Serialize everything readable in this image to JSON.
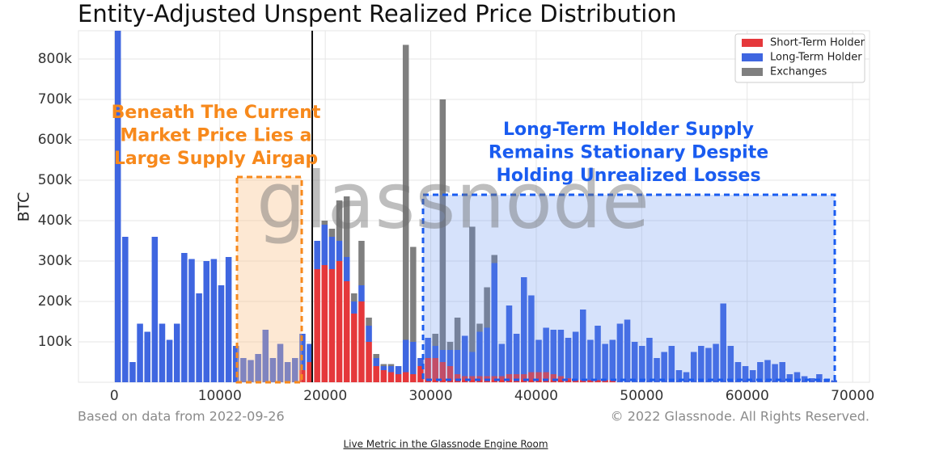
{
  "chart_data": {
    "type": "histogram",
    "title": "Entity-Adjusted Unspent Realized Price Distribution",
    "ylabel": "BTC",
    "bins": [
      0,
      700,
      1400,
      2100,
      2800,
      3500,
      4200,
      4900,
      5600,
      6300,
      7000,
      7700,
      8400,
      9100,
      9800,
      10500,
      11200,
      11900,
      12600,
      13300,
      14000,
      14700,
      15400,
      16100,
      16800,
      17500,
      18200,
      18900,
      19600,
      20300,
      21000,
      21700,
      22400,
      23100,
      23800,
      24500,
      25200,
      25900,
      26600,
      27300,
      28000,
      28700,
      29400,
      30100,
      30800,
      31500,
      32200,
      32900,
      33600,
      34300,
      35000,
      35700,
      36400,
      37100,
      37800,
      38500,
      39200,
      39900,
      40600,
      41300,
      42000,
      42700,
      43400,
      44100,
      44800,
      45500,
      46200,
      46900,
      47600,
      48300,
      49000,
      49700,
      50400,
      51100,
      51800,
      52500,
      53200,
      53900,
      54600,
      55300,
      56000,
      56700,
      57400,
      58100,
      58800,
      59500,
      60200,
      60900,
      61600,
      62300,
      63000,
      63700,
      64400,
      65100,
      65800,
      66500,
      67200,
      67900,
      68600
    ],
    "series": [
      {
        "name": "Short-Term Holder",
        "color": "#e5383b",
        "values": [
          0,
          0,
          0,
          0,
          0,
          0,
          0,
          0,
          0,
          0,
          0,
          0,
          0,
          0,
          0,
          0,
          0,
          0,
          0,
          0,
          0,
          0,
          0,
          0,
          0,
          30000,
          50000,
          280000,
          290000,
          280000,
          300000,
          250000,
          170000,
          200000,
          100000,
          40000,
          30000,
          25000,
          20000,
          25000,
          20000,
          40000,
          60000,
          60000,
          50000,
          40000,
          20000,
          15000,
          15000,
          15000,
          15000,
          15000,
          15000,
          20000,
          20000,
          20000,
          25000,
          25000,
          25000,
          20000,
          15000,
          10000,
          5000,
          5000,
          5000,
          5000,
          5000,
          5000,
          0,
          0,
          0,
          0,
          0,
          0,
          0,
          0,
          0,
          0,
          0,
          0,
          0,
          0,
          0,
          0,
          0,
          0,
          0,
          0,
          0,
          0,
          0,
          0,
          0,
          0,
          0,
          0,
          0,
          0
        ]
      },
      {
        "name": "Long-Term Holder",
        "color": "#3f66e0",
        "values": [
          870000,
          360000,
          50000,
          145000,
          125000,
          360000,
          145000,
          105000,
          145000,
          320000,
          305000,
          220000,
          300000,
          305000,
          240000,
          310000,
          90000,
          60000,
          55000,
          70000,
          130000,
          60000,
          95000,
          50000,
          60000,
          90000,
          45000,
          70000,
          100000,
          80000,
          50000,
          60000,
          30000,
          40000,
          40000,
          20000,
          10000,
          15000,
          20000,
          80000,
          80000,
          20000,
          50000,
          30000,
          30000,
          40000,
          60000,
          100000,
          60000,
          110000,
          120000,
          280000,
          80000,
          170000,
          100000,
          240000,
          190000,
          80000,
          110000,
          110000,
          115000,
          100000,
          120000,
          175000,
          100000,
          135000,
          90000,
          100000,
          145000,
          155000,
          100000,
          90000,
          110000,
          60000,
          75000,
          90000,
          30000,
          25000,
          75000,
          90000,
          85000,
          95000,
          195000,
          90000,
          50000,
          40000,
          30000,
          50000,
          55000,
          45000,
          50000,
          20000,
          25000,
          15000,
          10000,
          20000,
          8000,
          5000
        ]
      },
      {
        "name": "Exchanges",
        "color": "#7f7f7f",
        "values": [
          0,
          0,
          0,
          0,
          0,
          0,
          0,
          0,
          0,
          0,
          0,
          0,
          0,
          0,
          0,
          0,
          0,
          0,
          0,
          0,
          0,
          0,
          0,
          0,
          0,
          0,
          0,
          0,
          10000,
          20000,
          100000,
          150000,
          20000,
          110000,
          20000,
          10000,
          5000,
          5000,
          0,
          730000,
          235000,
          0,
          0,
          30000,
          620000,
          20000,
          80000,
          0,
          310000,
          20000,
          100000,
          20000,
          0,
          0,
          0,
          0,
          0,
          0,
          0,
          0,
          0,
          0,
          0,
          0,
          0,
          0,
          0,
          0,
          0,
          0,
          0,
          0,
          0,
          0,
          0,
          0,
          0,
          0,
          0,
          0,
          0,
          0,
          0,
          0,
          0,
          0,
          0,
          0,
          0,
          0,
          0,
          0,
          0,
          0,
          0,
          0,
          0,
          0
        ]
      }
    ],
    "xlim": [
      -3400,
      71600
    ],
    "xticks": [
      0,
      10000,
      20000,
      30000,
      40000,
      50000,
      60000,
      70000
    ],
    "ylim": [
      0,
      870000
    ],
    "yticks": [
      {
        "value": 100000,
        "label": "100k"
      },
      {
        "value": 200000,
        "label": "200k"
      },
      {
        "value": 300000,
        "label": "300k"
      },
      {
        "value": 400000,
        "label": "400k"
      },
      {
        "value": 500000,
        "label": "500k"
      },
      {
        "value": 600000,
        "label": "600k"
      },
      {
        "value": 700000,
        "label": "700k"
      },
      {
        "value": 800000,
        "label": "800k"
      }
    ],
    "grid": true,
    "legend": "upper right",
    "watermark": "glassnode",
    "annotations": [
      {
        "color": "#f7891c",
        "lines": [
          "Beneath The Current",
          "Market Price Lies a",
          "Large Supply Airgap"
        ]
      },
      {
        "color": "#1a5cf0",
        "lines": [
          "Long-Term Holder Supply",
          "Remains Stationary Despite",
          "Holding Unrealized Losses"
        ]
      }
    ],
    "source": "Based on data from 2022-09-26",
    "copyright": "© 2022 Glassnode. All Rights Reserved.",
    "link": "Live Metric in the Glassnode Engine Room"
  }
}
